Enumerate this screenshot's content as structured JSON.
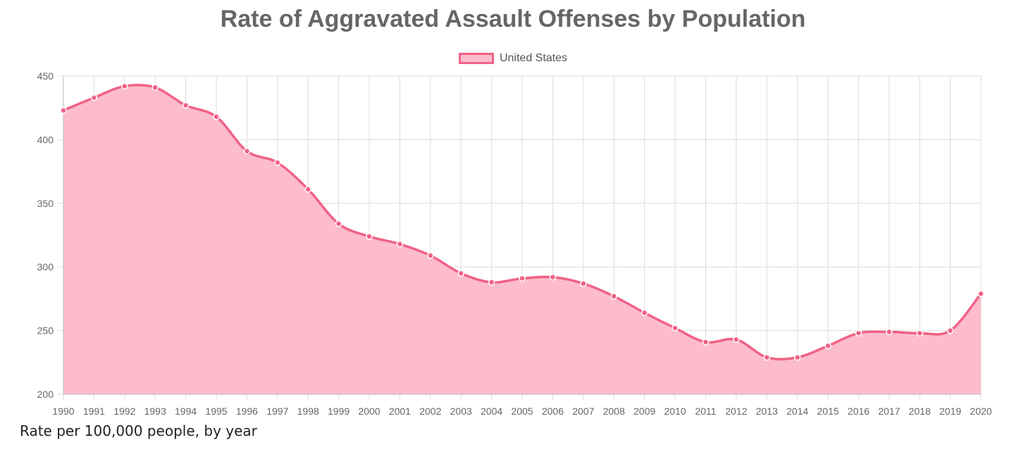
{
  "caption": "Rate per 100,000 people, by year",
  "chart_data": {
    "type": "area",
    "title": "Rate of Aggravated Assault Offenses by Population",
    "xlabel": "",
    "ylabel": "",
    "x": [
      "1990",
      "1991",
      "1992",
      "1993",
      "1994",
      "1995",
      "1996",
      "1997",
      "1998",
      "1999",
      "2000",
      "2001",
      "2002",
      "2003",
      "2004",
      "2005",
      "2006",
      "2007",
      "2008",
      "2009",
      "2010",
      "2011",
      "2012",
      "2013",
      "2014",
      "2015",
      "2016",
      "2017",
      "2018",
      "2019",
      "2020"
    ],
    "series": [
      {
        "name": "United States",
        "values": [
          423,
          433,
          442,
          441,
          427,
          418,
          391,
          382,
          361,
          334,
          324,
          318,
          309,
          295,
          288,
          291,
          292,
          287,
          277,
          264,
          252,
          241,
          243,
          229,
          229,
          238,
          248,
          249,
          248,
          250,
          279
        ]
      }
    ],
    "ylim": [
      200,
      450
    ],
    "yticks": [
      "200",
      "250",
      "300",
      "350",
      "400",
      "450"
    ],
    "grid": true,
    "legend_position": "top-center",
    "colors": {
      "line": "#f06287",
      "fill": "#fcbccd",
      "grid": "#dddddd",
      "point_fill": "#f06287",
      "point_stroke": "#ffffff"
    }
  }
}
